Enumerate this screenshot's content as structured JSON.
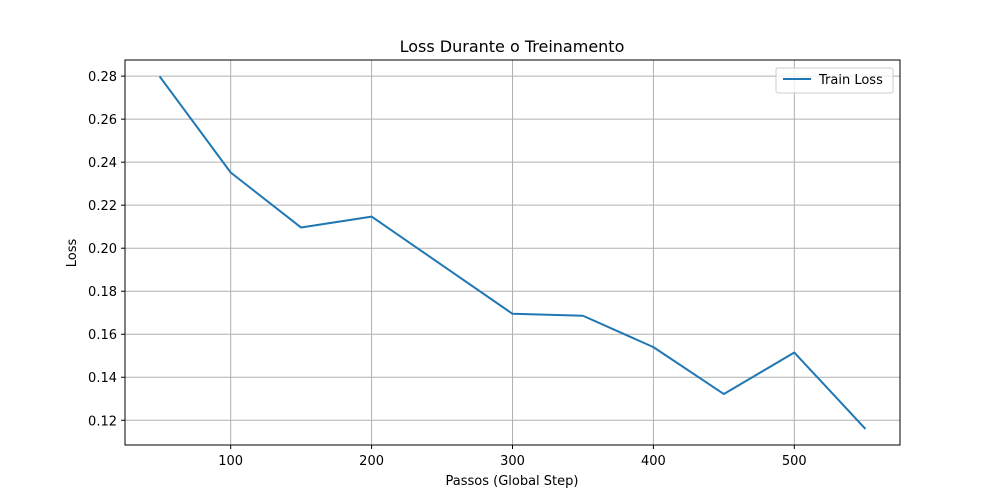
{
  "chart_data": {
    "type": "line",
    "title": "Loss Durante o Treinamento",
    "xlabel": "Passos (Global Step)",
    "ylabel": "Loss",
    "xlim": [
      25,
      575
    ],
    "ylim": [
      0.1085,
      0.2875
    ],
    "xticks": [
      100,
      200,
      300,
      400,
      500
    ],
    "yticks": [
      0.12,
      0.14,
      0.16,
      0.18,
      0.2,
      0.22,
      0.24,
      0.26,
      0.28
    ],
    "ytick_labels": [
      "0.12",
      "0.14",
      "0.16",
      "0.18",
      "0.20",
      "0.22",
      "0.24",
      "0.26",
      "0.28"
    ],
    "grid": true,
    "legend_position": "top-right",
    "series": [
      {
        "name": "Train Loss",
        "color": "#1f77b4",
        "x": [
          50,
          100,
          150,
          200,
          250,
          300,
          350,
          400,
          450,
          500,
          550
        ],
        "y": [
          0.2795,
          0.2352,
          0.2096,
          0.2147,
          0.1921,
          0.1695,
          0.1686,
          0.154,
          0.1322,
          0.1515,
          0.1163
        ]
      }
    ]
  }
}
